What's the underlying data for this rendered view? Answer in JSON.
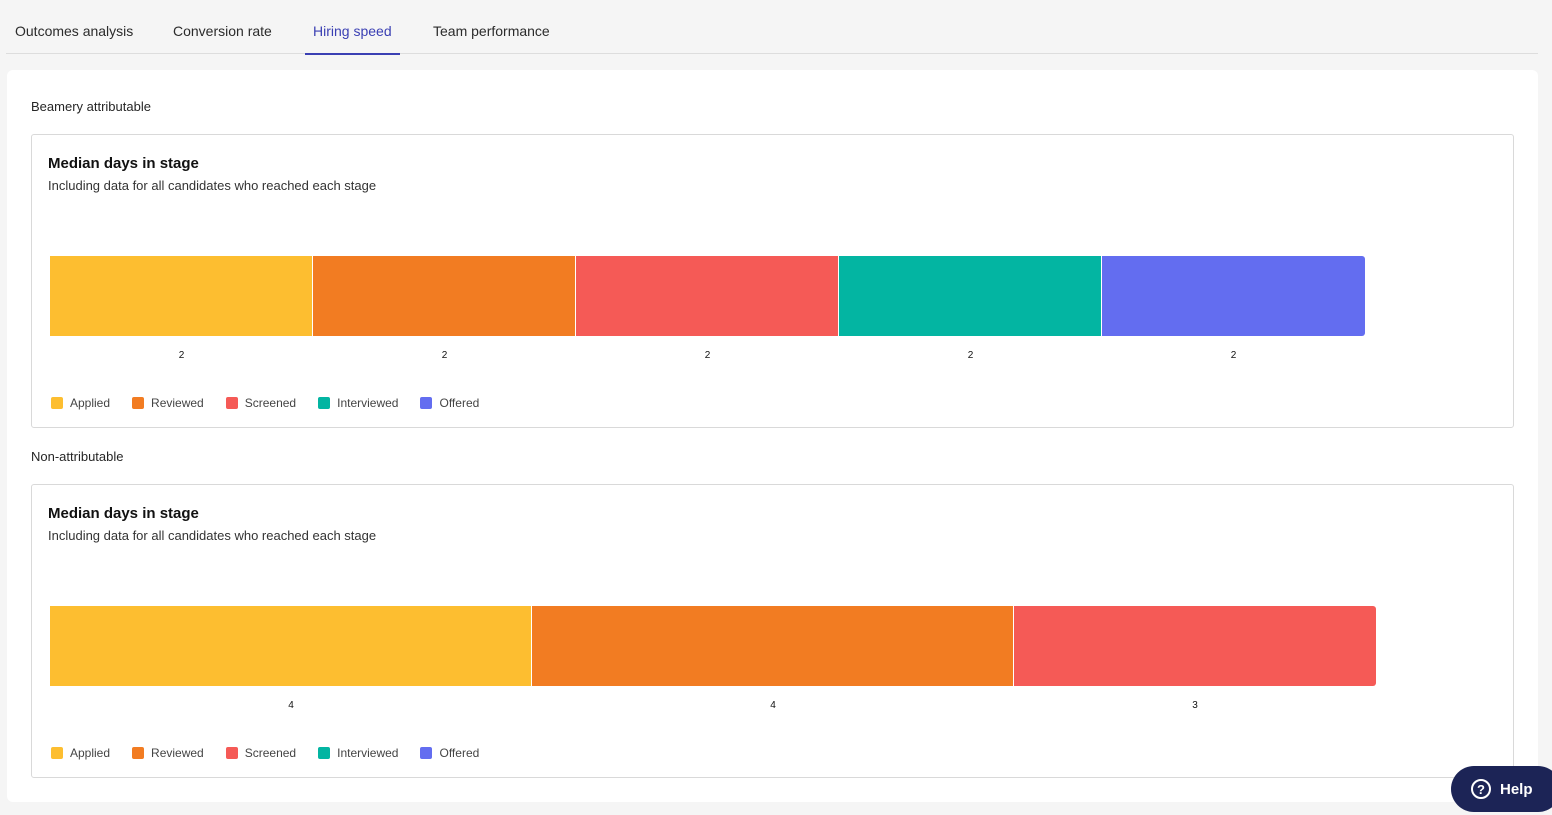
{
  "tabs": [
    {
      "label": "Outcomes analysis",
      "active": false
    },
    {
      "label": "Conversion rate",
      "active": false
    },
    {
      "label": "Hiring speed",
      "active": true
    },
    {
      "label": "Team performance",
      "active": false
    }
  ],
  "sections": [
    {
      "label": "Beamery attributable",
      "card": {
        "title": "Median days in stage",
        "subtitle": "Including data for all candidates who reached each stage"
      }
    },
    {
      "label": "Non-attributable",
      "card": {
        "title": "Median days in stage",
        "subtitle": "Including data for all candidates who reached each stage"
      }
    }
  ],
  "legend": [
    {
      "label": "Applied",
      "color": "#fdbe30"
    },
    {
      "label": "Reviewed",
      "color": "#f27c22"
    },
    {
      "label": "Screened",
      "color": "#f55a56"
    },
    {
      "label": "Interviewed",
      "color": "#03b5a2"
    },
    {
      "label": "Offered",
      "color": "#636df0"
    }
  ],
  "chart_data": [
    {
      "type": "bar",
      "orientation": "horizontal-stacked",
      "title": "Median days in stage",
      "subtitle": "Including data for all candidates who reached each stage",
      "categories": [
        "Applied",
        "Reviewed",
        "Screened",
        "Interviewed",
        "Offered"
      ],
      "values": [
        2,
        2,
        2,
        2,
        2
      ],
      "legend_position": "bottom-left",
      "grid": false
    },
    {
      "type": "bar",
      "orientation": "horizontal-stacked",
      "title": "Median days in stage",
      "subtitle": "Including data for all candidates who reached each stage",
      "categories": [
        "Applied",
        "Reviewed",
        "Screened"
      ],
      "values": [
        4,
        4,
        3
      ],
      "legend_position": "bottom-left",
      "grid": false
    }
  ],
  "help": {
    "label": "Help",
    "icon": "question-circle-icon"
  }
}
